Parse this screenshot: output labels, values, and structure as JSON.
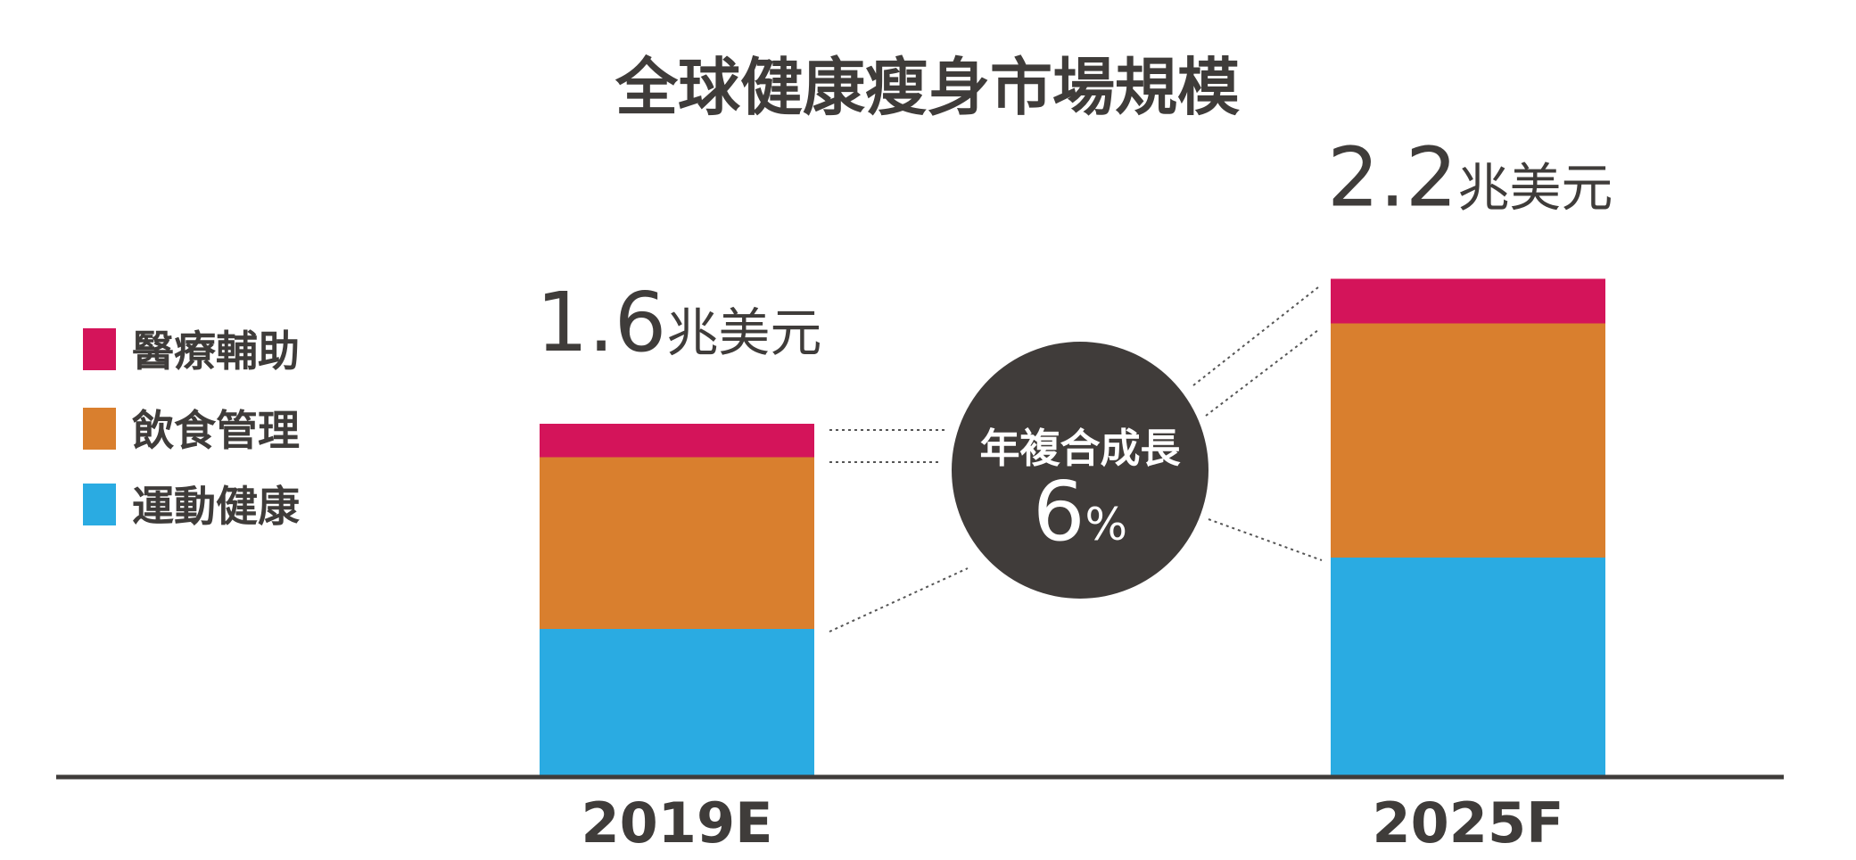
{
  "chart_data": {
    "type": "bar",
    "stacked": true,
    "title": "全球健康瘦身市場規模",
    "categories": [
      "2019E",
      "2025F"
    ],
    "totals": [
      {
        "value": "1.6",
        "unit": "兆美元"
      },
      {
        "value": "2.2",
        "unit": "兆美元"
      }
    ],
    "series": [
      {
        "name": "運動健康",
        "color": "#2aabe2",
        "values": [
          0.66,
          0.98
        ]
      },
      {
        "name": "飲食管理",
        "color": "#d97f2e",
        "values": [
          0.77,
          1.05
        ]
      },
      {
        "name": "醫療輔助",
        "color": "#d4145a",
        "values": [
          0.15,
          0.2
        ]
      }
    ],
    "ylim": [
      0,
      2.2
    ],
    "grid": false,
    "legend": "left",
    "cagr": {
      "label": "年複合成長",
      "value": "6",
      "unit": "%",
      "color": "#403c3a"
    },
    "axis_color": "#3f3c3a"
  }
}
